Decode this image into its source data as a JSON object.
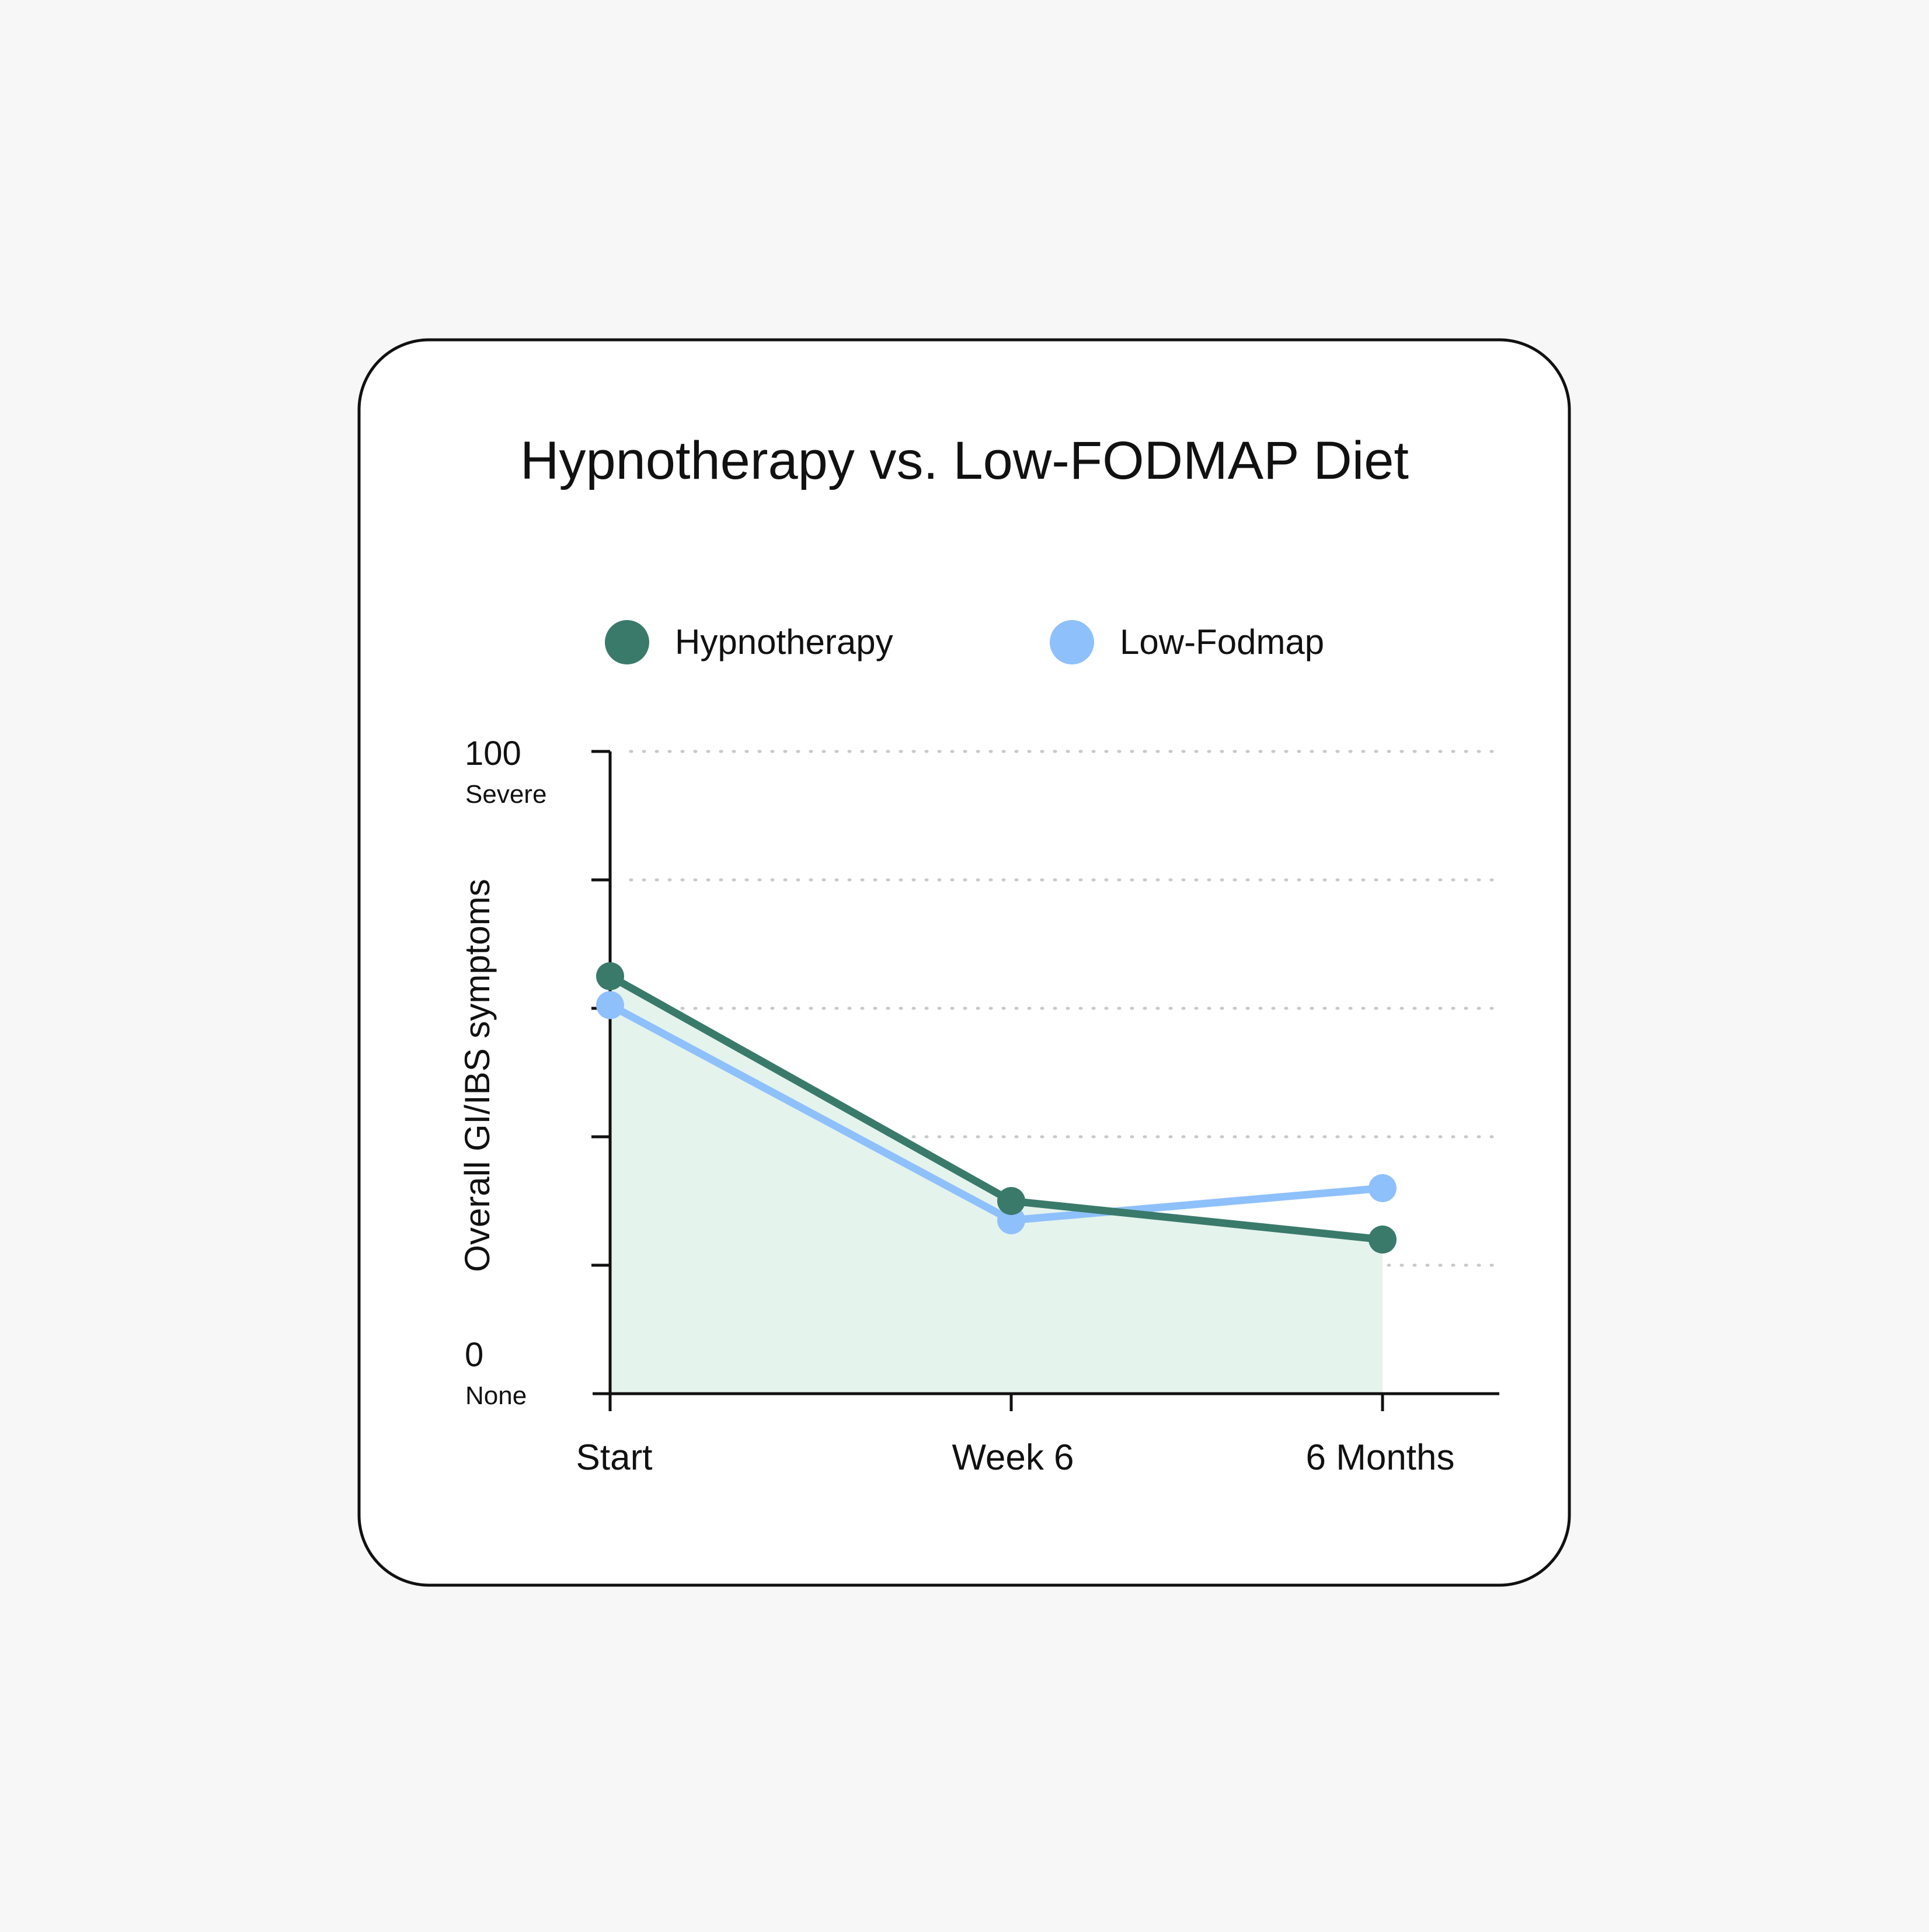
{
  "chart_data": {
    "type": "line",
    "title": "Hypnotherapy vs. Low-FODMAP Diet",
    "ylabel": "Overall GI/IBS symptoms",
    "xlabel": "",
    "categories": [
      "Start",
      "Week 6",
      "6 Months"
    ],
    "ylim": [
      0,
      100
    ],
    "y_ticks": [
      0,
      20,
      40,
      60,
      80,
      100
    ],
    "y_tick_labels": {
      "top_value": "100",
      "top_caption": "Severe",
      "bottom_value": "0",
      "bottom_caption": "None"
    },
    "grid": "horizontal dotted",
    "legend_position": "top-center",
    "series": [
      {
        "name": "Hypnotherapy",
        "values": [
          65,
          30,
          24
        ],
        "color": "#3a7a6b",
        "area_fill": "#e5f3ed"
      },
      {
        "name": "Low-Fodmap",
        "values": [
          60.5,
          27,
          32
        ],
        "color": "#8ec0fc"
      }
    ]
  }
}
